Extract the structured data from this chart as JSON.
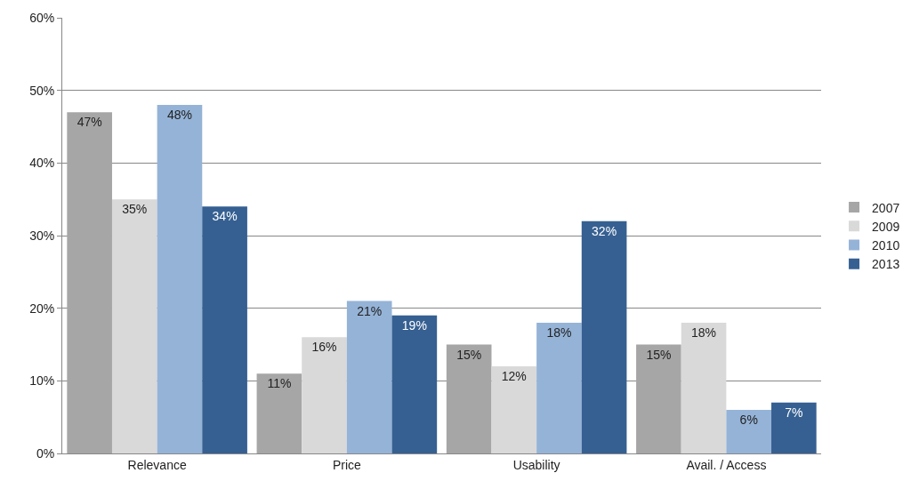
{
  "chart_data": {
    "type": "bar",
    "categories": [
      "Relevance",
      "Price",
      "Usability",
      "Avail. / Access"
    ],
    "series": [
      {
        "name": "2007",
        "color": "#a6a6a6",
        "values": [
          47,
          11,
          15,
          15
        ],
        "value_labels": [
          "47%",
          "11%",
          "15%",
          "15%"
        ]
      },
      {
        "name": "2009",
        "color": "#d9d9d9",
        "values": [
          35,
          16,
          12,
          18
        ],
        "value_labels": [
          "35%",
          "16%",
          "12%",
          "18%"
        ]
      },
      {
        "name": "2010",
        "color": "#95b3d7",
        "values": [
          48,
          21,
          18,
          6
        ],
        "value_labels": [
          "48%",
          "21%",
          "18%",
          "6%"
        ]
      },
      {
        "name": "2013",
        "color": "#366092",
        "values": [
          34,
          19,
          32,
          7
        ],
        "value_labels": [
          "34%",
          "19%",
          "32%",
          "7%"
        ]
      }
    ],
    "ylim": [
      0,
      60
    ],
    "yticks": [
      {
        "value": 0,
        "label": "0%"
      },
      {
        "value": 10,
        "label": "10%"
      },
      {
        "value": 20,
        "label": "20%"
      },
      {
        "value": 30,
        "label": "30%"
      },
      {
        "value": 40,
        "label": "40%"
      },
      {
        "value": 50,
        "label": "50%"
      },
      {
        "value": 60,
        "label": "60%"
      }
    ],
    "grid": "y",
    "legend": "right"
  }
}
